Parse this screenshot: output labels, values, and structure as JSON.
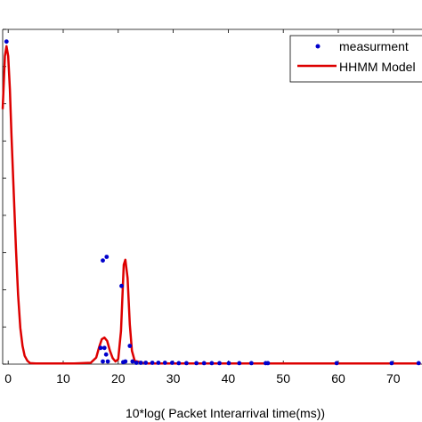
{
  "chart_data": {
    "type": "line",
    "title": "",
    "xlabel": "10*log( Packet Interarrival time(ms))",
    "ylabel": "",
    "xlim": [
      -1,
      75
    ],
    "ylim": [
      0,
      1
    ],
    "x_ticks": [
      "0",
      "10",
      "20",
      "30",
      "40",
      "50",
      "60",
      "70"
    ],
    "legend_position": "top-right",
    "grid": false,
    "series": [
      {
        "name": "measurment",
        "style": "markers",
        "color": "#0000cc",
        "x": [
          -0.3,
          17.2,
          17.9,
          20.6,
          16.8,
          17.5,
          17.8,
          22.1,
          17.2,
          18.1,
          21.3,
          22.6,
          20.9,
          23.3,
          24.1,
          25.0,
          26.2,
          27.3,
          28.5,
          29.8,
          31.0,
          32.4,
          34.2,
          35.6,
          37.0,
          38.4,
          40.1,
          42.0,
          44.2,
          46.8,
          47.2,
          59.7,
          69.7,
          74.6
        ],
        "y": [
          0.974,
          0.313,
          0.324,
          0.236,
          0.049,
          0.049,
          0.029,
          0.055,
          0.008,
          0.008,
          0.008,
          0.008,
          0.006,
          0.004,
          0.004,
          0.004,
          0.004,
          0.004,
          0.004,
          0.004,
          0.003,
          0.003,
          0.003,
          0.003,
          0.003,
          0.003,
          0.003,
          0.003,
          0.003,
          0.003,
          0.003,
          0.003,
          0.003,
          0.003
        ]
      },
      {
        "name": "HHMM Model",
        "style": "line",
        "color": "#dd0000",
        "x": [
          -1.0,
          -0.6,
          -0.3,
          0.0,
          0.3,
          0.6,
          1.0,
          1.4,
          1.8,
          2.2,
          2.6,
          3.0,
          3.5,
          4.0,
          5.0,
          8.0,
          12.0,
          15.0,
          16.0,
          16.5,
          17.0,
          17.5,
          18.0,
          18.5,
          19.0,
          19.5,
          20.0,
          20.5,
          21.0,
          21.3,
          21.7,
          22.1,
          22.5,
          23.0,
          25.0,
          30.0,
          40.0,
          50.0,
          60.0,
          70.0,
          75.0
        ],
        "y": [
          0.77,
          0.93,
          0.96,
          0.93,
          0.83,
          0.69,
          0.52,
          0.35,
          0.21,
          0.11,
          0.055,
          0.025,
          0.01,
          0.003,
          0.002,
          0.002,
          0.002,
          0.004,
          0.02,
          0.05,
          0.075,
          0.08,
          0.07,
          0.04,
          0.018,
          0.008,
          0.015,
          0.1,
          0.3,
          0.315,
          0.26,
          0.12,
          0.04,
          0.01,
          0.002,
          0.002,
          0.002,
          0.002,
          0.002,
          0.002,
          0.002
        ]
      }
    ]
  }
}
